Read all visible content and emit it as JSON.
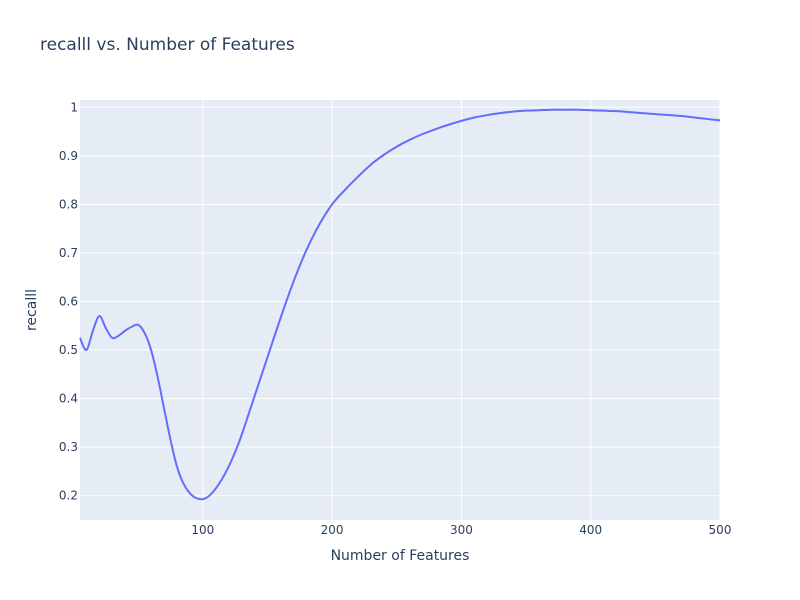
{
  "chart_data": {
    "type": "line",
    "title": "recalll vs. Number of Features",
    "xlabel": "Number of Features",
    "ylabel": "recalll",
    "xlim": [
      5,
      500
    ],
    "ylim": [
      0.15,
      1.015
    ],
    "xticks": [
      100,
      200,
      300,
      400,
      500
    ],
    "yticks": [
      0.2,
      0.3,
      0.4,
      0.5,
      0.6,
      0.7,
      0.8,
      0.9,
      1
    ],
    "grid": true,
    "line_color": "#636efa",
    "plot_bg": "#e5ecf6",
    "series": [
      {
        "x": [
          5,
          10,
          15,
          20,
          25,
          30,
          35,
          40,
          45,
          50,
          55,
          60,
          65,
          70,
          75,
          80,
          85,
          90,
          95,
          100,
          105,
          110,
          115,
          120,
          125,
          130,
          140,
          150,
          160,
          170,
          180,
          190,
          200,
          210,
          220,
          230,
          240,
          250,
          260,
          270,
          280,
          290,
          300,
          310,
          320,
          330,
          340,
          350,
          360,
          370,
          380,
          390,
          400,
          410,
          420,
          430,
          440,
          450,
          460,
          470,
          480,
          490,
          500
        ],
        "y": [
          0.525,
          0.5,
          0.54,
          0.57,
          0.545,
          0.525,
          0.53,
          0.54,
          0.548,
          0.552,
          0.535,
          0.5,
          0.445,
          0.38,
          0.315,
          0.26,
          0.225,
          0.205,
          0.195,
          0.193,
          0.2,
          0.215,
          0.235,
          0.26,
          0.29,
          0.325,
          0.405,
          0.485,
          0.565,
          0.64,
          0.705,
          0.758,
          0.8,
          0.83,
          0.857,
          0.882,
          0.902,
          0.919,
          0.933,
          0.945,
          0.955,
          0.964,
          0.972,
          0.979,
          0.984,
          0.988,
          0.991,
          0.993,
          0.994,
          0.995,
          0.995,
          0.995,
          0.994,
          0.993,
          0.992,
          0.99,
          0.988,
          0.986,
          0.984,
          0.982,
          0.979,
          0.976,
          0.973
        ]
      }
    ]
  }
}
